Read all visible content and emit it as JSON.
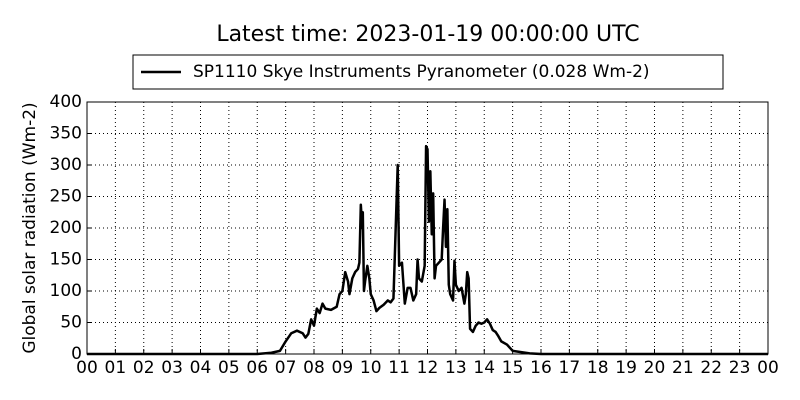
{
  "chart_data": {
    "type": "line",
    "title": "Latest time: 2023-01-19 00:00:00 UTC",
    "y_label": "Global solar radiation (Wm-2)",
    "x": [
      0,
      6,
      6.5,
      6.8,
      7.0,
      7.2,
      7.4,
      7.6,
      7.7,
      7.8,
      7.9,
      8.0,
      8.1,
      8.2,
      8.3,
      8.4,
      8.6,
      8.8,
      8.9,
      9.0,
      9.1,
      9.2,
      9.25,
      9.35,
      9.45,
      9.55,
      9.6,
      9.65,
      9.7,
      9.72,
      9.76,
      9.8,
      9.88,
      9.95,
      10.0,
      10.1,
      10.2,
      10.3,
      10.45,
      10.6,
      10.7,
      10.8,
      10.95,
      11.0,
      11.1,
      11.2,
      11.3,
      11.4,
      11.5,
      11.6,
      11.65,
      11.7,
      11.8,
      11.9,
      11.95,
      12.0,
      12.05,
      12.1,
      12.15,
      12.2,
      12.25,
      12.3,
      12.4,
      12.5,
      12.55,
      12.6,
      12.65,
      12.7,
      12.75,
      12.8,
      12.9,
      12.95,
      13.0,
      13.1,
      13.2,
      13.3,
      13.35,
      13.4,
      13.45,
      13.5,
      13.6,
      13.7,
      13.8,
      13.9,
      14.0,
      14.1,
      14.2,
      14.3,
      14.4,
      14.5,
      14.6,
      14.8,
      14.9,
      15.0,
      15.3,
      15.6,
      16,
      24
    ],
    "series": [
      {
        "name": "SP1110 Skye Instruments Pyranometer (0.028 Wm-2)",
        "color": "#000000",
        "values": [
          0,
          0,
          2,
          5,
          20,
          33,
          37,
          33,
          26,
          32,
          55,
          45,
          72,
          65,
          80,
          72,
          70,
          75,
          95,
          100,
          130,
          115,
          95,
          120,
          130,
          135,
          145,
          237,
          200,
          225,
          100,
          115,
          140,
          120,
          95,
          85,
          68,
          73,
          78,
          85,
          82,
          88,
          300,
          140,
          145,
          80,
          105,
          105,
          85,
          95,
          150,
          120,
          115,
          140,
          330,
          325,
          210,
          290,
          190,
          255,
          120,
          140,
          145,
          150,
          200,
          245,
          170,
          230,
          110,
          95,
          85,
          148,
          110,
          100,
          105,
          80,
          95,
          130,
          120,
          40,
          35,
          45,
          50,
          48,
          50,
          55,
          48,
          38,
          35,
          28,
          20,
          15,
          10,
          5,
          3,
          1,
          0,
          0
        ]
      }
    ],
    "xlim": [
      0,
      24
    ],
    "xticks": [
      {
        "value": 0,
        "label": "00"
      },
      {
        "value": 1,
        "label": "01"
      },
      {
        "value": 2,
        "label": "02"
      },
      {
        "value": 3,
        "label": "03"
      },
      {
        "value": 4,
        "label": "04"
      },
      {
        "value": 5,
        "label": "05"
      },
      {
        "value": 6,
        "label": "06"
      },
      {
        "value": 7,
        "label": "07"
      },
      {
        "value": 8,
        "label": "08"
      },
      {
        "value": 9,
        "label": "09"
      },
      10,
      11,
      12,
      13,
      14,
      15,
      16,
      17,
      18,
      19,
      20,
      21,
      22,
      23,
      {
        "value": 24,
        "label": "00"
      }
    ],
    "ylim": [
      0,
      400
    ],
    "yticks": [
      0,
      50,
      100,
      150,
      200,
      250,
      300,
      350,
      400
    ],
    "grid": true
  }
}
